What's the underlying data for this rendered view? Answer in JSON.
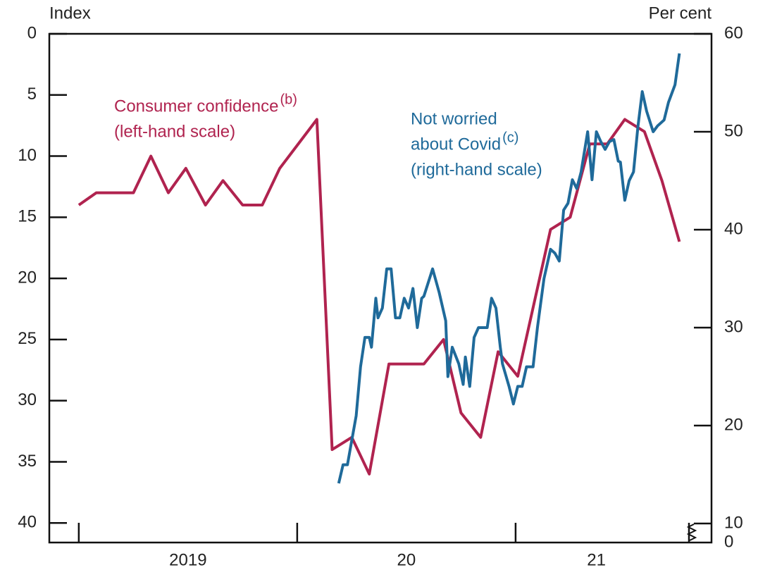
{
  "chart_data": {
    "type": "line",
    "y_unit_label": "Index",
    "y2_unit_label": "Per cent",
    "ylim": [
      41.6,
      0
    ],
    "yticks": [
      0,
      5,
      10,
      15,
      20,
      25,
      30,
      35,
      40
    ],
    "y2lim": [
      8.06,
      60
    ],
    "y2ticks": [
      10,
      20,
      30,
      40,
      50,
      60
    ],
    "y2_break_label": "0",
    "xlim": [
      2018.865,
      2021.897
    ],
    "xticks": [
      2019,
      2020,
      2021
    ],
    "x_labels": [
      {
        "value": 2019.5,
        "label": "2019"
      },
      {
        "value": 2020.5,
        "label": "20"
      },
      {
        "value": 2021.37,
        "label": "21"
      }
    ],
    "series": [
      {
        "label_lines": [
          "Consumer confidence",
          "(left-hand scale)"
        ],
        "note": "(b)",
        "color": "#b0234f",
        "axis": "y",
        "x": [
          2019.0,
          2019.08,
          2019.25,
          2019.33,
          2019.41,
          2019.49,
          2019.58,
          2019.66,
          2019.75,
          2019.84,
          2019.92,
          2020.09,
          2020.16,
          2020.25,
          2020.33,
          2020.42,
          2020.58,
          2020.67,
          2020.75,
          2020.84,
          2020.92,
          2021.01,
          2021.16,
          2021.25,
          2021.34,
          2021.42,
          2021.5,
          2021.59,
          2021.67,
          2021.75
        ],
        "values": [
          14,
          13,
          13,
          10,
          13,
          11,
          14,
          12,
          14,
          14,
          11,
          7,
          34,
          33,
          36,
          27,
          27,
          25,
          31,
          33,
          26,
          28,
          16,
          15,
          9,
          9,
          7,
          8,
          12,
          17
        ]
      },
      {
        "label_lines": [
          "Not worried",
          "about Covid",
          "(right-hand scale)"
        ],
        "note": "(c)",
        "color": "#1f6a9a",
        "axis": "y2",
        "x": [
          2020.19,
          2020.21,
          2020.23,
          2020.27,
          2020.29,
          2020.31,
          2020.33,
          2020.34,
          2020.36,
          2020.37,
          2020.39,
          2020.41,
          2020.43,
          2020.45,
          2020.47,
          2020.49,
          2020.51,
          2020.53,
          2020.55,
          2020.57,
          2020.58,
          2020.62,
          2020.65,
          2020.68,
          2020.69,
          2020.71,
          2020.74,
          2020.76,
          2020.77,
          2020.79,
          2020.81,
          2020.83,
          2020.87,
          2020.89,
          2020.91,
          2020.93,
          2020.94,
          2020.97,
          2020.99,
          2021.01,
          2021.03,
          2021.05,
          2021.08,
          2021.1,
          2021.13,
          2021.16,
          2021.18,
          2021.2,
          2021.22,
          2021.24,
          2021.26,
          2021.28,
          2021.3,
          2021.33,
          2021.35,
          2021.37,
          2021.39,
          2021.41,
          2021.43,
          2021.45,
          2021.47,
          2021.48,
          2021.5,
          2021.52,
          2021.54,
          2021.56,
          2021.58,
          2021.6,
          2021.63,
          2021.65,
          2021.68,
          2021.7,
          2021.73,
          2021.75
        ],
        "values": [
          14.1,
          16,
          16,
          21,
          26,
          29,
          29,
          28,
          33,
          31,
          32,
          36,
          36,
          31,
          31,
          33,
          32,
          34,
          30,
          33,
          33.2,
          36,
          33.6,
          30.7,
          25,
          28,
          26.3,
          24.2,
          27,
          24,
          29,
          30,
          30,
          33,
          32,
          28,
          26.3,
          24,
          22.2,
          24,
          24,
          26,
          26,
          30,
          35,
          38,
          37.6,
          36.8,
          42,
          42.7,
          45.1,
          44.2,
          45.9,
          50,
          45.1,
          50,
          49,
          48.2,
          49,
          49.2,
          47,
          46.9,
          43,
          45,
          45.9,
          50.5,
          54.1,
          52.1,
          50,
          50.6,
          51.2,
          53,
          54.8,
          58
        ]
      }
    ]
  }
}
